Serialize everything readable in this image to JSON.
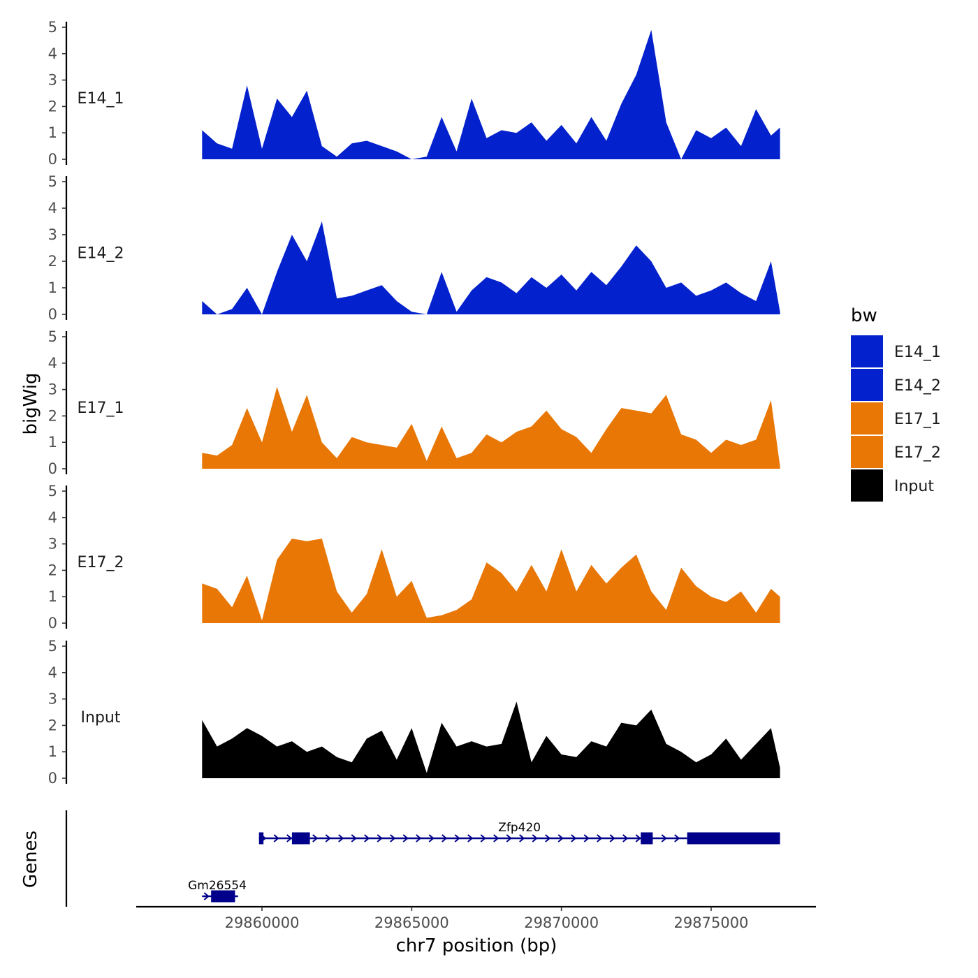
{
  "chart_data": {
    "type": "area",
    "title": "",
    "xlabel": "chr7 position (bp)",
    "ylabel": "bigWig",
    "xlim": [
      29855800,
      29878500
    ],
    "ylim": [
      0,
      5
    ],
    "grid": false,
    "x_ticks": [
      29860000,
      29865000,
      29870000,
      29875000
    ],
    "x_tick_labels": [
      "29860000",
      "29865000",
      "29870000",
      "29875000"
    ],
    "y_ticks": [
      0,
      1,
      2,
      3,
      4,
      5
    ],
    "y_tick_labels": [
      "0",
      "1",
      "2",
      "3",
      "4",
      "5"
    ],
    "x": [
      29858000,
      29858500,
      29859000,
      29859500,
      29860000,
      29860500,
      29861000,
      29861500,
      29862000,
      29862500,
      29863000,
      29863500,
      29864000,
      29864500,
      29865000,
      29865500,
      29866000,
      29866500,
      29867000,
      29867500,
      29868000,
      29868500,
      29869000,
      29869500,
      29870000,
      29870500,
      29871000,
      29871500,
      29872000,
      29872500,
      29873000,
      29873500,
      29874000,
      29874500,
      29875000,
      29875500,
      29876000,
      29876500,
      29877000,
      29877300
    ],
    "series": [
      {
        "name": "E14_1",
        "color": "#0321CC",
        "values": [
          1.1,
          0.6,
          0.4,
          2.8,
          0.4,
          2.3,
          1.6,
          2.6,
          0.5,
          0.1,
          0.6,
          0.7,
          0.5,
          0.3,
          0,
          0.1,
          1.6,
          0.3,
          2.3,
          0.8,
          1.1,
          1.0,
          1.4,
          0.7,
          1.3,
          0.6,
          1.6,
          0.7,
          2.1,
          3.2,
          4.9,
          1.4,
          0,
          1.1,
          0.8,
          1.2,
          0.5,
          1.9,
          0.9,
          1.2
        ]
      },
      {
        "name": "E14_2",
        "color": "#0321CC",
        "values": [
          0.5,
          0,
          0.2,
          1.0,
          0,
          1.6,
          3.0,
          2.0,
          3.5,
          0.6,
          0.7,
          0.9,
          1.1,
          0.5,
          0.1,
          0,
          1.6,
          0.1,
          0.9,
          1.4,
          1.2,
          0.8,
          1.4,
          1.0,
          1.5,
          0.9,
          1.6,
          1.1,
          1.8,
          2.6,
          2.0,
          1.0,
          1.2,
          0.7,
          0.9,
          1.2,
          0.8,
          0.5,
          2.0,
          0.1
        ]
      },
      {
        "name": "E17_1",
        "color": "#E87706",
        "values": [
          0.6,
          0.5,
          0.9,
          2.3,
          1.0,
          3.1,
          1.4,
          2.8,
          1.0,
          0.4,
          1.2,
          1.0,
          0.9,
          0.8,
          1.7,
          0.3,
          1.6,
          0.4,
          0.6,
          1.3,
          1.0,
          1.4,
          1.6,
          2.2,
          1.5,
          1.2,
          0.6,
          1.5,
          2.3,
          2.2,
          2.1,
          2.8,
          1.3,
          1.1,
          0.6,
          1.1,
          0.9,
          1.1,
          2.6,
          0.1
        ]
      },
      {
        "name": "E17_2",
        "color": "#E87706",
        "values": [
          1.5,
          1.3,
          0.6,
          1.8,
          0.1,
          2.4,
          3.2,
          3.1,
          3.2,
          1.2,
          0.4,
          1.1,
          2.8,
          1.0,
          1.6,
          0.2,
          0.3,
          0.5,
          0.9,
          2.3,
          1.9,
          1.2,
          2.2,
          1.2,
          2.8,
          1.2,
          2.2,
          1.5,
          2.1,
          2.6,
          1.2,
          0.5,
          2.1,
          1.4,
          1.0,
          0.8,
          1.2,
          0.4,
          1.3,
          1.0
        ]
      },
      {
        "name": "Input",
        "color": "#000000",
        "values": [
          2.2,
          1.2,
          1.5,
          1.9,
          1.6,
          1.2,
          1.4,
          1.0,
          1.2,
          0.8,
          0.6,
          1.5,
          1.8,
          0.7,
          1.9,
          0.2,
          2.1,
          1.2,
          1.4,
          1.2,
          1.3,
          2.9,
          0.6,
          1.6,
          0.9,
          0.8,
          1.4,
          1.2,
          2.1,
          2.0,
          2.6,
          1.3,
          1.0,
          0.6,
          0.9,
          1.5,
          0.7,
          1.3,
          1.9,
          0.4
        ]
      }
    ],
    "genes_track_label": "Genes",
    "genes": [
      {
        "name": "Zfp420",
        "start": 29859900,
        "end": 29877300,
        "strand": "+",
        "row": 1,
        "exons": [
          [
            29859900,
            29860050
          ],
          [
            29861000,
            29861600
          ],
          [
            29872650,
            29873050
          ],
          [
            29874200,
            29877300
          ]
        ]
      },
      {
        "name": "Gm26554",
        "start": 29858000,
        "end": 29859200,
        "strand": "+",
        "row": 2,
        "exons": [
          [
            29858300,
            29859100
          ]
        ]
      }
    ],
    "gene_color": "#00008B",
    "legend": {
      "title": "bw",
      "position": "right",
      "entries": [
        {
          "label": "E14_1",
          "color": "#0321CC"
        },
        {
          "label": "E14_2",
          "color": "#0321CC"
        },
        {
          "label": "E17_1",
          "color": "#E87706"
        },
        {
          "label": "E17_2",
          "color": "#E87706"
        },
        {
          "label": "Input",
          "color": "#000000"
        }
      ]
    }
  }
}
